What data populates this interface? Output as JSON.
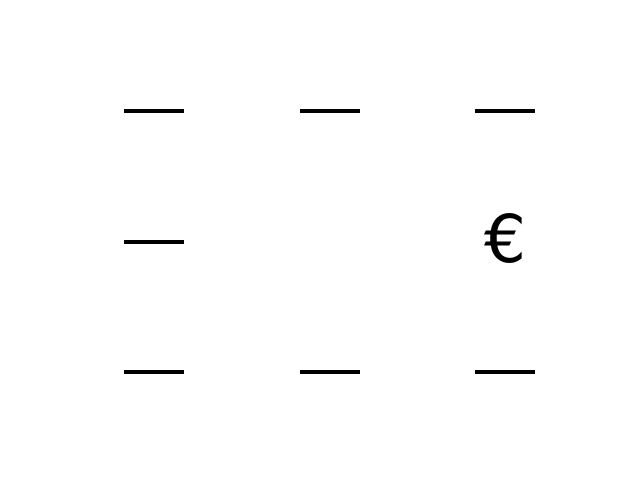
{
  "grid": {
    "rows": [
      [
        {
          "kind": "dash",
          "text": "—"
        },
        {
          "kind": "dash",
          "text": "—"
        },
        {
          "kind": "dash",
          "text": "—"
        }
      ],
      [
        {
          "kind": "dash",
          "text": "—"
        },
        {
          "kind": "empty",
          "text": ""
        },
        {
          "kind": "symbol",
          "text": "€"
        }
      ],
      [
        {
          "kind": "dash",
          "text": "—"
        },
        {
          "kind": "dash",
          "text": "—"
        },
        {
          "kind": "dash",
          "text": "—"
        }
      ]
    ]
  },
  "colors": {
    "background": "#ffffff",
    "ink": "#000000"
  }
}
